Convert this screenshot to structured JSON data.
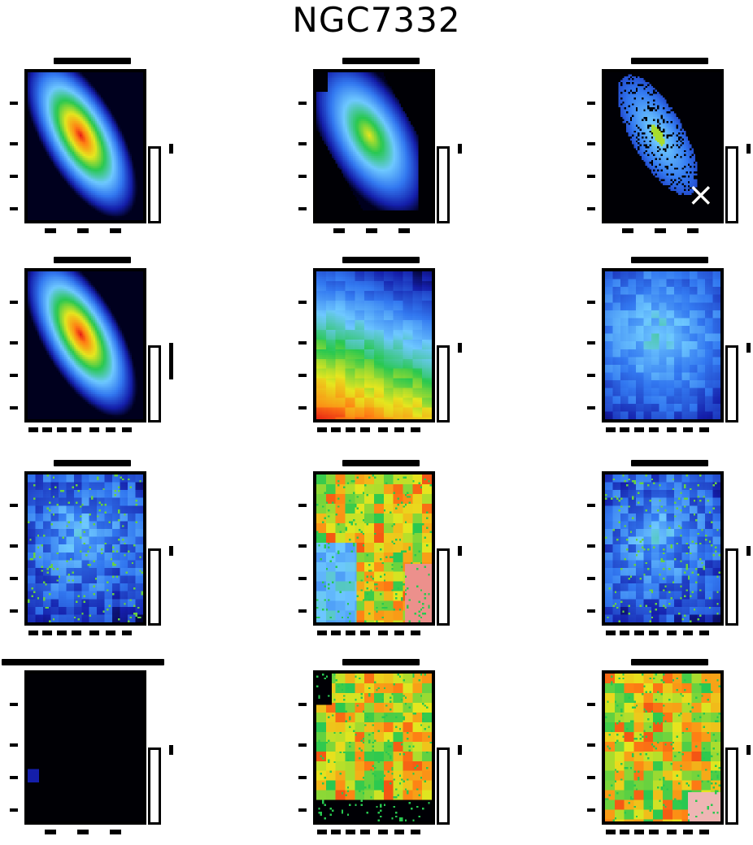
{
  "figure": {
    "title": "NGC7332"
  },
  "panels": [
    {
      "id": "p1",
      "colormap": "rainbow",
      "pattern": "ellipse-smooth",
      "dark_background": false
    },
    {
      "id": "p2",
      "colormap": "rainbow",
      "pattern": "ellipse-core",
      "dark_background": true
    },
    {
      "id": "p3",
      "colormap": "rainbow",
      "pattern": "diagonal-sparse",
      "dark_background": true,
      "marker": "×"
    },
    {
      "id": "p4",
      "colormap": "rainbow",
      "pattern": "ellipse-smooth",
      "dark_background": false
    },
    {
      "id": "p5",
      "colormap": "rainbow",
      "pattern": "velocity-gradient",
      "dark_background": false
    },
    {
      "id": "p6",
      "colormap": "rainbow",
      "pattern": "dispersion",
      "dark_background": false
    },
    {
      "id": "p7",
      "colormap": "rainbow",
      "pattern": "noisy-blue",
      "dark_background": true
    },
    {
      "id": "p8",
      "colormap": "rainbow",
      "pattern": "noisy-warm",
      "dark_background": false
    },
    {
      "id": "p9",
      "colormap": "rainbow",
      "pattern": "noisy-blue",
      "dark_background": false
    },
    {
      "id": "p10",
      "colormap": "rainbow",
      "pattern": "empty",
      "dark_background": true
    },
    {
      "id": "p11",
      "colormap": "rainbow",
      "pattern": "noisy-hot",
      "dark_background": true
    },
    {
      "id": "p12",
      "colormap": "rainbow",
      "pattern": "noisy-warm2",
      "dark_background": true
    }
  ]
}
